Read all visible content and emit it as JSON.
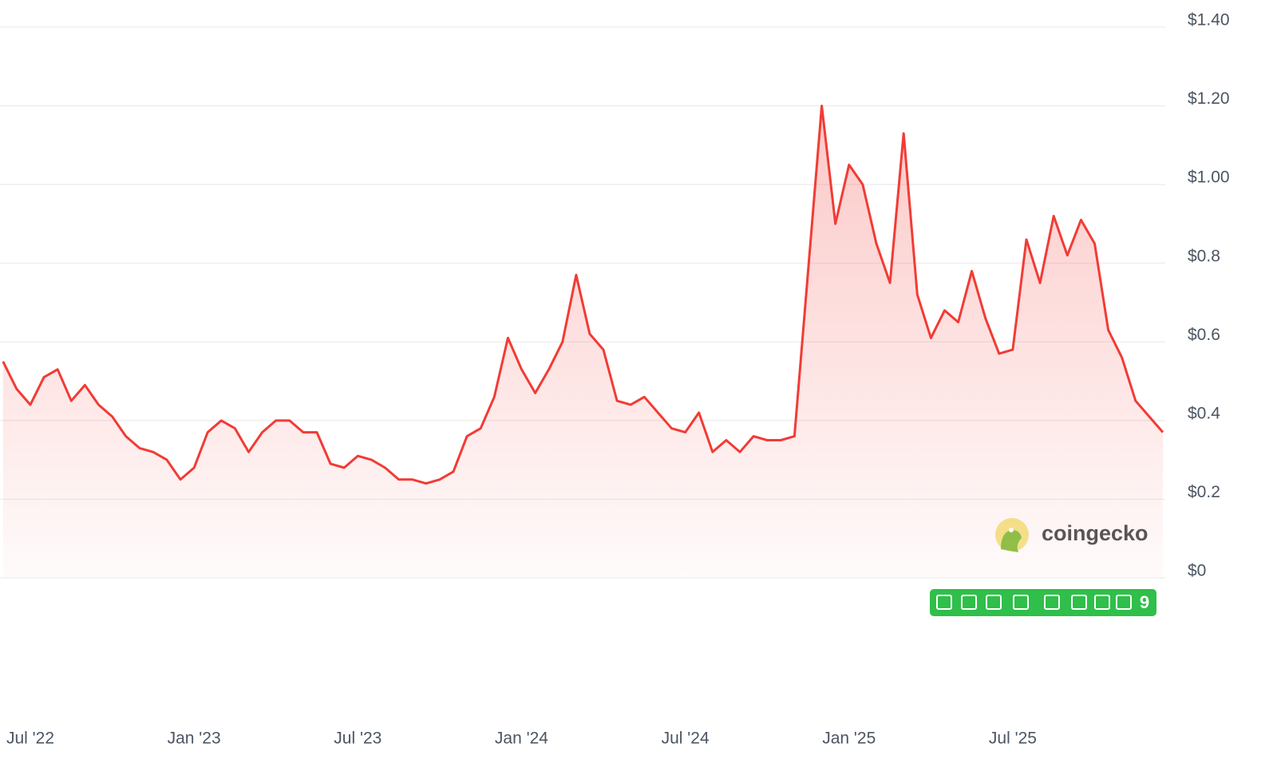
{
  "chart_data": {
    "type": "line",
    "categories": [
      null,
      null,
      "Jul '22",
      null,
      null,
      null,
      null,
      null,
      null,
      null,
      null,
      null,
      null,
      null,
      "Jan '23",
      null,
      null,
      null,
      null,
      null,
      null,
      null,
      null,
      null,
      null,
      null,
      "Jul '23",
      null,
      null,
      null,
      null,
      null,
      null,
      null,
      null,
      null,
      null,
      null,
      "Jan '24",
      null,
      null,
      null,
      null,
      null,
      null,
      null,
      null,
      null,
      null,
      null,
      "Jul '24",
      null,
      null,
      null,
      null,
      null,
      null,
      null,
      null,
      null,
      null,
      null,
      "Jan '25",
      null,
      null,
      null,
      null,
      null,
      null,
      null,
      null,
      null,
      null,
      null,
      "Jul '25",
      null,
      null,
      null,
      null,
      null,
      null,
      null,
      null,
      null,
      null,
      null
    ],
    "values": [
      0.55,
      0.48,
      0.44,
      0.51,
      0.53,
      0.45,
      0.49,
      0.44,
      0.41,
      0.36,
      0.33,
      0.32,
      0.3,
      0.25,
      0.28,
      0.37,
      0.4,
      0.38,
      0.32,
      0.37,
      0.4,
      0.4,
      0.37,
      0.37,
      0.29,
      0.28,
      0.31,
      0.3,
      0.28,
      0.25,
      0.25,
      0.24,
      0.25,
      0.27,
      0.36,
      0.38,
      0.46,
      0.61,
      0.53,
      0.47,
      0.53,
      0.6,
      0.77,
      0.62,
      0.58,
      0.45,
      0.44,
      0.46,
      0.42,
      0.38,
      0.37,
      0.42,
      0.32,
      0.35,
      0.32,
      0.36,
      0.35,
      0.35,
      0.36,
      0.78,
      1.2,
      0.9,
      1.05,
      1.0,
      0.85,
      0.75,
      1.13,
      0.72,
      0.61,
      0.68,
      0.65,
      0.78,
      0.66,
      0.57,
      0.58,
      0.86,
      0.75,
      0.92,
      0.82,
      0.91,
      0.85,
      0.63,
      0.56,
      0.45,
      0.41,
      0.37
    ],
    "color": "#f23b35",
    "ylim": [
      0,
      1.4
    ],
    "yticks": [
      {
        "value": 0,
        "label": "$0"
      },
      {
        "value": 0.2,
        "label": "$0.2"
      },
      {
        "value": 0.4,
        "label": "$0.4"
      },
      {
        "value": 0.6,
        "label": "$0.6"
      },
      {
        "value": 0.8,
        "label": "$0.8"
      },
      {
        "value": 1.0,
        "label": "$1.00"
      },
      {
        "value": 1.2,
        "label": "$1.20"
      },
      {
        "value": 1.4,
        "label": "$1.40"
      }
    ],
    "grid": true,
    "watermark": "coingecko",
    "badge": "9"
  }
}
